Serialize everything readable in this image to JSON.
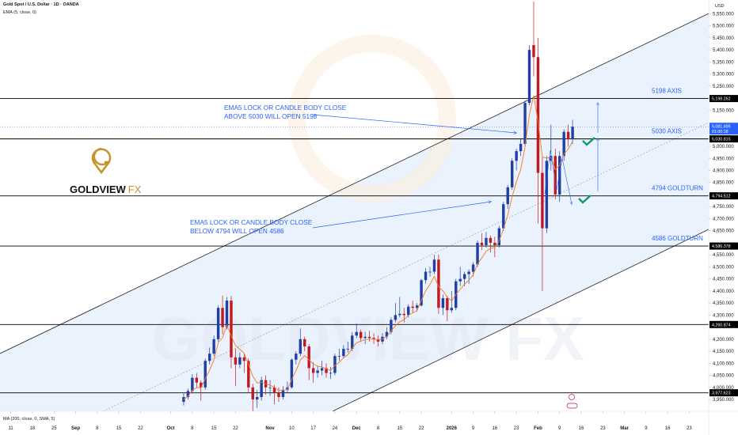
{
  "chart_data": {
    "type": "candlestick",
    "title": "Gold Spot / U.S. Dollar · 1D · OANDA",
    "indicators": [
      "EMA (5, close, 0)",
      "MA (200, close, 0, SMA, 5)"
    ],
    "currency": "USD",
    "watermark": "GOLDVIEW FX",
    "logo": {
      "name": "GOLDVIEW",
      "suffix": "FX"
    },
    "up_color": "#1f3fa6",
    "down_color": "#c2181f",
    "ema_color": "#f57a1f",
    "level_color": "#000000",
    "price_color": "#2962ff",
    "xlim": [
      -2.5,
      161.5
    ],
    "ylim": [
      3901,
      5607
    ],
    "xticks": [
      {
        "value": 0,
        "label": "11"
      },
      {
        "value": 5,
        "label": "18"
      },
      {
        "value": 10,
        "label": "25"
      },
      {
        "value": 15,
        "label": "Sep"
      },
      {
        "value": 20,
        "label": "8"
      },
      {
        "value": 25,
        "label": "15"
      },
      {
        "value": 30,
        "label": "22"
      },
      {
        "value": 37,
        "label": "Oct"
      },
      {
        "value": 42,
        "label": "8"
      },
      {
        "value": 47,
        "label": "15"
      },
      {
        "value": 52,
        "label": "22"
      },
      {
        "value": 60,
        "label": "Nov"
      },
      {
        "value": 65,
        "label": "10"
      },
      {
        "value": 70,
        "label": "17"
      },
      {
        "value": 75,
        "label": "24"
      },
      {
        "value": 80,
        "label": "Dec"
      },
      {
        "value": 85,
        "label": "8"
      },
      {
        "value": 90,
        "label": "15"
      },
      {
        "value": 95,
        "label": "22"
      },
      {
        "value": 102,
        "label": "2026"
      },
      {
        "value": 107,
        "label": "9"
      },
      {
        "value": 112,
        "label": "16"
      },
      {
        "value": 117,
        "label": "23"
      },
      {
        "value": 122,
        "label": "Feb"
      },
      {
        "value": 127,
        "label": "9"
      },
      {
        "value": 132,
        "label": "16"
      },
      {
        "value": 137,
        "label": "23"
      },
      {
        "value": 142,
        "label": "Mar"
      },
      {
        "value": 147,
        "label": "9"
      },
      {
        "value": 152,
        "label": "16"
      },
      {
        "value": 157,
        "label": "23"
      }
    ],
    "yticks": [
      {
        "value": 3950,
        "label": "3,950.000"
      },
      {
        "value": 4000,
        "label": "4,000.000"
      },
      {
        "value": 4050,
        "label": "4,050.000"
      },
      {
        "value": 4100,
        "label": "4,100.000"
      },
      {
        "value": 4150,
        "label": "4,150.000"
      },
      {
        "value": 4200,
        "label": "4,200.000"
      },
      {
        "value": 4300,
        "label": "4,300.000"
      },
      {
        "value": 4350,
        "label": "4,350.000"
      },
      {
        "value": 4400,
        "label": "4,400.000"
      },
      {
        "value": 4450,
        "label": "4,450.000"
      },
      {
        "value": 4500,
        "label": "4,500.000"
      },
      {
        "value": 4550,
        "label": "4,550.000"
      },
      {
        "value": 4650,
        "label": "4,650.000"
      },
      {
        "value": 4700,
        "label": "4,700.000"
      },
      {
        "value": 4750,
        "label": "4,750.000"
      },
      {
        "value": 4850,
        "label": "4,850.000"
      },
      {
        "value": 4900,
        "label": "4,900.000"
      },
      {
        "value": 4950,
        "label": "4,950.000"
      },
      {
        "value": 5000,
        "label": "5,000.000"
      },
      {
        "value": 5150,
        "label": "5,150.000"
      },
      {
        "value": 5250,
        "label": "5,250.000"
      },
      {
        "value": 5300,
        "label": "5,300.000"
      },
      {
        "value": 5350,
        "label": "5,350.000"
      },
      {
        "value": 5400,
        "label": "5,400.000"
      },
      {
        "value": 5450,
        "label": "5,450.000"
      },
      {
        "value": 5500,
        "label": "5,500.000"
      },
      {
        "value": 5550,
        "label": "5,550.000"
      }
    ],
    "levels": [
      {
        "value": 5198.262,
        "label": "5,198.262",
        "note": "5198 AXIS"
      },
      {
        "value": 5030.815,
        "label": "5,030.815",
        "note": "5030 AXIS"
      },
      {
        "value": 4794.512,
        "label": "4,794.512",
        "note": "4794 GOLDTURN"
      },
      {
        "value": 4586.378,
        "label": "4,586.378",
        "note": "4586 GOLDTURN"
      },
      {
        "value": 4260.874,
        "label": "4,260.874"
      },
      {
        "value": 3977.623,
        "label": "3,977.623"
      }
    ],
    "last_price": {
      "value": 5081.495,
      "label": "5,081.495"
    },
    "countdown": "01:00:18",
    "callouts": [
      [
        "EMA5 LOCK OR CANDLE BODY CLOSE",
        "ABOVE 5030 WILL OPEN 5198"
      ],
      [
        "EMA5 LOCK OR CANDLE BODY CLOSE",
        "BELOW 4794 WILL OPEN 4586"
      ]
    ],
    "x": [
      40,
      41,
      42,
      43,
      44,
      45,
      46,
      47,
      48,
      49,
      50,
      51,
      52,
      53,
      54,
      55,
      56,
      57,
      58,
      59,
      60,
      61,
      62,
      63,
      64,
      65,
      66,
      67,
      68,
      69,
      70,
      71,
      72,
      73,
      74,
      75,
      76,
      77,
      78,
      79,
      80,
      81,
      82,
      83,
      84,
      85,
      86,
      87,
      88,
      89,
      90,
      91,
      92,
      93,
      94,
      95,
      96,
      97,
      98,
      99,
      100,
      101,
      102,
      103,
      104,
      105,
      106,
      107,
      108,
      109,
      110,
      111,
      112,
      113,
      114,
      115,
      116,
      117,
      118,
      119,
      120,
      121,
      122,
      123,
      124,
      125,
      126,
      127,
      128,
      129,
      130
    ],
    "open": [
      3940,
      3960,
      3985,
      4040,
      4020,
      4000,
      4110,
      4140,
      4200,
      4330,
      4250,
      4360,
      4125,
      4095,
      4125,
      4110,
      4000,
      3950,
      3960,
      4030,
      4000,
      4000,
      3980,
      3960,
      3990,
      4000,
      4115,
      4140,
      4200,
      4170,
      4080,
      4060,
      4070,
      4080,
      4060,
      4060,
      4130,
      4130,
      4160,
      4160,
      4215,
      4230,
      4205,
      4210,
      4205,
      4200,
      4190,
      4210,
      4230,
      4280,
      4300,
      4305,
      4300,
      4335,
      4330,
      4340,
      4445,
      4480,
      4480,
      4530,
      4330,
      4370,
      4320,
      4330,
      4440,
      4450,
      4470,
      4480,
      4510,
      4600,
      4590,
      4620,
      4600,
      4590,
      4660,
      4760,
      4830,
      4940,
      4980,
      5010,
      5180,
      5420,
      5370,
      4890,
      4660,
      4940,
      4960,
      4800,
      4960,
      5060,
      5030
    ],
    "high": [
      3975,
      3995,
      4055,
      4060,
      4030,
      4120,
      4165,
      4215,
      4340,
      4381,
      4375,
      4380,
      4160,
      4145,
      4140,
      4120,
      4015,
      3990,
      4045,
      4050,
      4030,
      4010,
      4000,
      4005,
      4025,
      4120,
      4150,
      4245,
      4210,
      4180,
      4105,
      4090,
      4110,
      4100,
      4085,
      4140,
      4160,
      4175,
      4190,
      4230,
      4265,
      4240,
      4230,
      4235,
      4225,
      4215,
      4225,
      4250,
      4290,
      4350,
      4375,
      4330,
      4345,
      4360,
      4350,
      4450,
      4495,
      4500,
      4550,
      4550,
      4385,
      4380,
      4400,
      4450,
      4500,
      4480,
      4490,
      4520,
      4610,
      4640,
      4645,
      4630,
      4625,
      4670,
      4770,
      4840,
      4950,
      4990,
      5030,
      5190,
      5420,
      5600,
      5450,
      4960,
      4960,
      5090,
      4990,
      4980,
      5070,
      5090,
      5110
    ],
    "low": [
      3925,
      3950,
      3975,
      4000,
      3945,
      3990,
      4095,
      4130,
      4190,
      4220,
      4240,
      4080,
      4005,
      4080,
      4060,
      3980,
      3886,
      3915,
      3945,
      3970,
      3965,
      3930,
      3940,
      3950,
      3980,
      3995,
      4095,
      4130,
      4150,
      4030,
      4020,
      4040,
      4050,
      4040,
      4035,
      4050,
      4110,
      4120,
      4145,
      4150,
      4205,
      4190,
      4180,
      4190,
      4180,
      4170,
      4180,
      4200,
      4220,
      4270,
      4290,
      4270,
      4290,
      4310,
      4315,
      4335,
      4430,
      4460,
      4470,
      4305,
      4300,
      4275,
      4310,
      4320,
      4420,
      4420,
      4430,
      4460,
      4500,
      4570,
      4580,
      4560,
      4540,
      4580,
      4650,
      4740,
      4820,
      4900,
      4960,
      5000,
      5170,
      5290,
      4680,
      4400,
      4640,
      4900,
      4780,
      4770,
      4940,
      5000,
      5010
    ],
    "close": [
      3960,
      3985,
      4040,
      4020,
      4000,
      4110,
      4140,
      4200,
      4330,
      4250,
      4360,
      4125,
      4095,
      4125,
      4110,
      4000,
      3950,
      3960,
      4030,
      4000,
      4000,
      3980,
      3960,
      3990,
      4000,
      4115,
      4140,
      4200,
      4170,
      4080,
      4060,
      4070,
      4080,
      4060,
      4060,
      4130,
      4130,
      4160,
      4160,
      4215,
      4230,
      4205,
      4210,
      4205,
      4200,
      4190,
      4210,
      4230,
      4280,
      4300,
      4305,
      4300,
      4335,
      4330,
      4340,
      4445,
      4480,
      4480,
      4530,
      4330,
      4370,
      4320,
      4330,
      4440,
      4450,
      4470,
      4480,
      4510,
      4600,
      4590,
      4620,
      4600,
      4590,
      4660,
      4760,
      4830,
      4940,
      4980,
      5010,
      5180,
      5400,
      5370,
      4890,
      4660,
      4940,
      4960,
      4800,
      4960,
      5060,
      5030,
      5081.495
    ],
    "ema": [
      3950,
      3962,
      3988,
      3999,
      3999,
      4036,
      4071,
      4114,
      4186,
      4207,
      4258,
      4214,
      4174,
      4158,
      4142,
      4095,
      4047,
      4018,
      4022,
      4015,
      4010,
      4000,
      3987,
      3988,
      3992,
      4033,
      4069,
      4113,
      4132,
      4115,
      4097,
      4088,
      4085,
      4077,
      4071,
      4091,
      4104,
      4123,
      4135,
      4162,
      4185,
      4192,
      4198,
      4200,
      4200,
      4197,
      4201,
      4211,
      4234,
      4256,
      4272,
      4281,
      4299,
      4309,
      4319,
      4361,
      4401,
      4427,
      4461,
      4417,
      4401,
      4374,
      4359,
      4386,
      4407,
      4428,
      4445,
      4467,
      4511,
      4537,
      4565,
      4577,
      4581,
      4607,
      4658,
      4715,
      4790,
      4853,
      4905,
      4997,
      5131,
      5211,
      5104,
      4956,
      4951,
      4954,
      4903,
      4922,
      4968,
      4989,
      5020
    ]
  }
}
